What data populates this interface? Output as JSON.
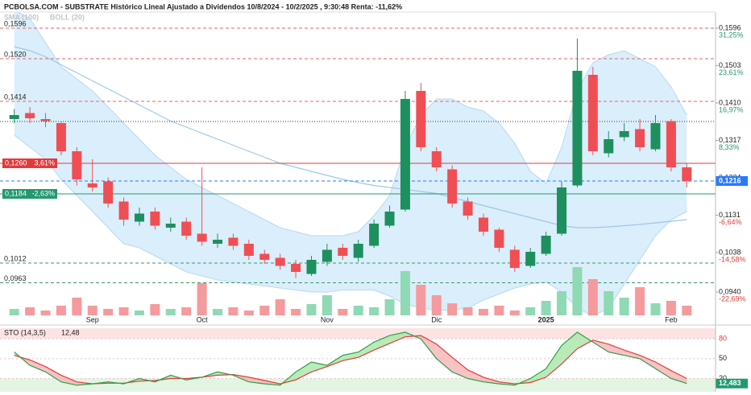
{
  "chart_data": {
    "type": "candlestick",
    "title": "PCBOLSA.COM - SUBSTRATE Histórico Lineal Ajustado a Dividendos 10/8/2024 - 10/2/2025 , 9:30:48 Renta: -11,62%",
    "categories": [
      null,
      null,
      null,
      null,
      null,
      "Sep",
      null,
      null,
      null,
      null,
      null,
      null,
      "Oct",
      null,
      null,
      null,
      null,
      null,
      null,
      null,
      "Nov",
      null,
      null,
      null,
      null,
      null,
      null,
      "Dic",
      null,
      null,
      null,
      null,
      null,
      null,
      "2025",
      null,
      null,
      null,
      null,
      null,
      null,
      null,
      "Feb",
      null
    ],
    "open": [
      0.137,
      0.1385,
      0.137,
      0.136,
      0.129,
      0.121,
      0.1215,
      0.1165,
      0.1115,
      0.114,
      0.11,
      0.1115,
      0.1085,
      0.106,
      0.1075,
      0.106,
      0.1035,
      0.1025,
      0.101,
      0.0985,
      0.1015,
      0.105,
      0.1025,
      0.1055,
      0.1105,
      0.1145,
      0.144,
      0.129,
      0.1245,
      0.1165,
      0.1125,
      0.1095,
      0.1045,
      0.1005,
      0.1035,
      0.1085,
      0.1205,
      0.148,
      0.1285,
      0.1325,
      0.1345,
      0.1295,
      0.1365,
      0.125
    ],
    "high": [
      0.1395,
      0.14,
      0.1385,
      0.1365,
      0.13,
      0.127,
      0.1225,
      0.1175,
      0.115,
      0.115,
      0.1125,
      0.1125,
      0.125,
      0.1085,
      0.1085,
      0.107,
      0.1045,
      0.1035,
      0.102,
      0.103,
      0.106,
      0.106,
      0.107,
      0.112,
      0.1155,
      0.144,
      0.146,
      0.13,
      0.1255,
      0.1175,
      0.1135,
      0.11,
      0.1055,
      0.105,
      0.109,
      0.1215,
      0.157,
      0.15,
      0.134,
      0.136,
      0.137,
      0.138,
      0.137,
      0.126
    ],
    "low": [
      0.136,
      0.136,
      0.135,
      0.128,
      0.1205,
      0.119,
      0.115,
      0.1105,
      0.1105,
      0.1095,
      0.109,
      0.107,
      0.1055,
      0.105,
      0.1045,
      0.102,
      0.101,
      0.0995,
      0.0975,
      0.098,
      0.1005,
      0.102,
      0.1015,
      0.105,
      0.11,
      0.114,
      0.129,
      0.124,
      0.115,
      0.112,
      0.108,
      0.104,
      0.099,
      0.1,
      0.103,
      0.108,
      0.12,
      0.128,
      0.1275,
      0.1315,
      0.129,
      0.129,
      0.124,
      0.12
    ],
    "close": [
      0.138,
      0.1372,
      0.1365,
      0.129,
      0.122,
      0.12,
      0.116,
      0.112,
      0.1135,
      0.1105,
      0.111,
      0.108,
      0.1065,
      0.107,
      0.1055,
      0.103,
      0.102,
      0.1005,
      0.099,
      0.102,
      0.1045,
      0.103,
      0.106,
      0.111,
      0.114,
      0.142,
      0.13,
      0.125,
      0.116,
      0.113,
      0.109,
      0.105,
      0.1,
      0.104,
      0.108,
      0.12,
      0.149,
      0.129,
      0.132,
      0.134,
      0.13,
      0.136,
      0.125,
      0.1216
    ],
    "volume": [
      8,
      10,
      6,
      12,
      22,
      12,
      8,
      10,
      6,
      14,
      8,
      10,
      40,
      8,
      10,
      6,
      12,
      20,
      8,
      14,
      25,
      8,
      12,
      10,
      20,
      55,
      38,
      25,
      15,
      10,
      8,
      12,
      6,
      10,
      18,
      30,
      60,
      45,
      30,
      22,
      35,
      15,
      18,
      12
    ],
    "up_color": "#1e8f5e",
    "down_color": "#ef4f54",
    "up_volume_color": "#8fd9b4",
    "down_volume_color": "#f59a9d",
    "ylim": [
      0.0882,
      0.1636
    ],
    "yticks": [
      {
        "value": 0.1596,
        "label": "0,1596"
      },
      {
        "value": 0.1503,
        "label": "0,1503"
      },
      {
        "value": 0.141,
        "label": "0,1410"
      },
      {
        "value": 0.1317,
        "label": "0,1317"
      },
      {
        "value": 0.1224,
        "label": "0,1224"
      },
      {
        "value": 0.1131,
        "label": "0,1131"
      },
      {
        "value": 0.1038,
        "label": "0,1038"
      },
      {
        "value": 0.094,
        "label": "0,0940"
      }
    ],
    "ytick_pct": [
      "31,25%",
      "23,61%",
      "16,97%",
      "8,33%",
      null,
      "-6,64%",
      "-14,58%",
      "-22,69%"
    ],
    "levels": [
      {
        "value": 0.1596,
        "label": "0,1596",
        "color": "#e06666",
        "style": "dashed"
      },
      {
        "value": 0.152,
        "label": "0,1520",
        "color": "#e06666",
        "style": "dashed"
      },
      {
        "value": 0.1414,
        "label": "0,1414",
        "color": "#e06666",
        "style": "dashed"
      },
      {
        "value": 0.1364,
        "color": "#333333",
        "style": "dotted"
      },
      {
        "value": 0.126,
        "label": "0,1260",
        "pct": "3,61%",
        "color": "#e03c3c",
        "style": "solid"
      },
      {
        "value": 0.1184,
        "label": "0,1184",
        "pct": "-2,63%",
        "color": "#22996e",
        "style": "solid"
      },
      {
        "value": 0.1012,
        "label": "0,1012",
        "color": "#3a9a6a",
        "style": "dashed"
      },
      {
        "value": 0.0963,
        "label": "0,0963",
        "color": "#3a9a6a",
        "style": "dashed"
      }
    ],
    "last_price": {
      "value": 0.1216,
      "label": "0,1216",
      "color": "#2979ff"
    },
    "sma": {
      "name": "SMA (100)",
      "color": "#9cc8ea",
      "values": [
        0.155,
        0.154,
        0.1525,
        0.1505,
        0.1485,
        0.1465,
        0.1445,
        0.1425,
        0.1405,
        0.1385,
        0.1365,
        0.135,
        0.1335,
        0.132,
        0.1305,
        0.129,
        0.1275,
        0.126,
        0.125,
        0.124,
        0.123,
        0.122,
        0.1212,
        0.1205,
        0.12,
        0.1195,
        0.119,
        0.1185,
        0.1175,
        0.1165,
        0.1155,
        0.1145,
        0.1135,
        0.1125,
        0.1115,
        0.1105,
        0.11,
        0.11,
        0.1102,
        0.1105,
        0.1108,
        0.1112,
        0.1116,
        0.112
      ]
    },
    "boll": {
      "name": "BOLL (20)",
      "color": "#b5daf3",
      "fill": "#dbeefb",
      "upper": [
        0.164,
        0.162,
        0.156,
        0.15,
        0.147,
        0.144,
        0.14,
        0.136,
        0.132,
        0.128,
        0.125,
        0.122,
        0.12,
        0.118,
        0.116,
        0.114,
        0.112,
        0.11,
        0.109,
        0.108,
        0.108,
        0.108,
        0.109,
        0.113,
        0.118,
        0.13,
        0.138,
        0.142,
        0.142,
        0.14,
        0.139,
        0.136,
        0.131,
        0.124,
        0.121,
        0.13,
        0.144,
        0.151,
        0.153,
        0.154,
        0.152,
        0.15,
        0.145,
        0.138
      ],
      "lower": [
        0.133,
        0.13,
        0.127,
        0.122,
        0.118,
        0.114,
        0.11,
        0.106,
        0.105,
        0.103,
        0.101,
        0.099,
        0.098,
        0.097,
        0.0965,
        0.096,
        0.0955,
        0.095,
        0.0945,
        0.094,
        0.094,
        0.0945,
        0.0945,
        0.0945,
        0.093,
        0.091,
        0.09,
        0.0895,
        0.0895,
        0.09,
        0.092,
        0.0935,
        0.095,
        0.096,
        0.0965,
        0.094,
        0.09,
        0.088,
        0.09,
        0.096,
        0.102,
        0.108,
        0.112,
        0.114
      ]
    },
    "sto": {
      "type": "line",
      "title": "STO (14,3,5)",
      "legend_value": "12,48",
      "last_label": "12,483",
      "ylim": [
        0,
        96
      ],
      "yticks": [
        20,
        50,
        80
      ],
      "k": {
        "color": "#2e9e4e",
        "values": [
          60,
          40,
          30,
          15,
          10,
          12,
          15,
          12,
          20,
          15,
          25,
          18,
          22,
          30,
          25,
          15,
          12,
          10,
          30,
          45,
          40,
          55,
          60,
          75,
          85,
          90,
          80,
          50,
          30,
          20,
          15,
          12,
          10,
          20,
          35,
          70,
          90,
          75,
          60,
          55,
          50,
          35,
          20,
          12.483
        ]
      },
      "d": {
        "color": "#e03c3c",
        "values": [
          55,
          48,
          38,
          25,
          15,
          12,
          13,
          13,
          16,
          17,
          20,
          20,
          22,
          25,
          26,
          22,
          17,
          12,
          18,
          30,
          38,
          47,
          52,
          63,
          73,
          83,
          85,
          72,
          52,
          33,
          22,
          15,
          12,
          14,
          22,
          42,
          65,
          78,
          72,
          63,
          55,
          45,
          32,
          20
        ]
      }
    }
  }
}
